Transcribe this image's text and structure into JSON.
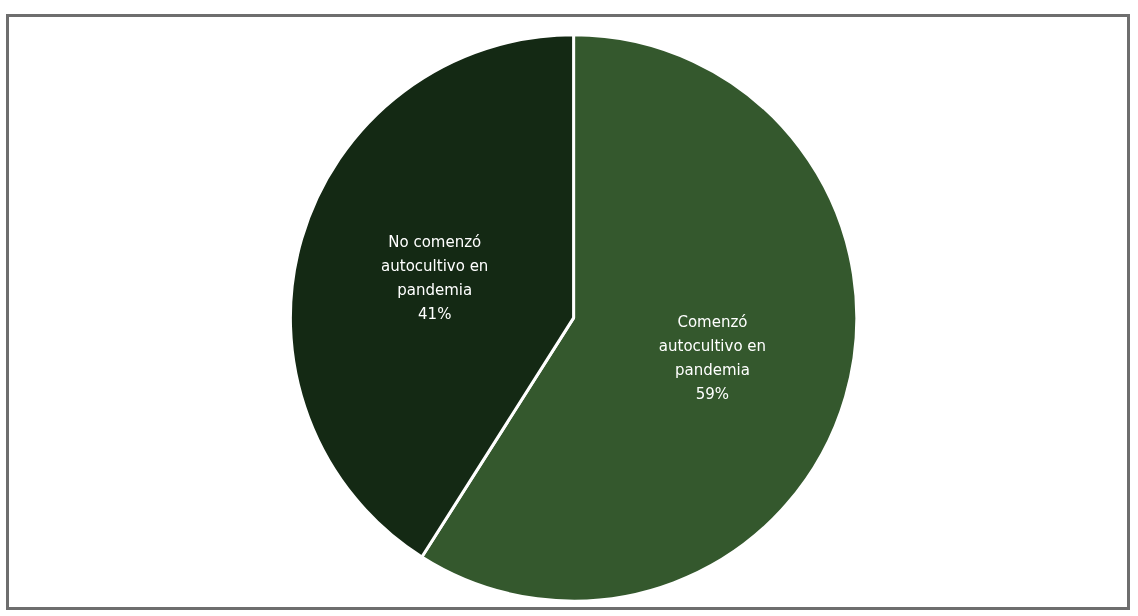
{
  "chart_data": {
    "type": "pie",
    "categories": [
      "Comenzó autocultivo en pandemia",
      "No comenzó autocultivo en pandemia"
    ],
    "values": [
      59,
      41
    ],
    "value_labels": [
      "59%",
      "41%"
    ],
    "colors": [
      "#34582d",
      "#142914"
    ],
    "legend": false
  }
}
